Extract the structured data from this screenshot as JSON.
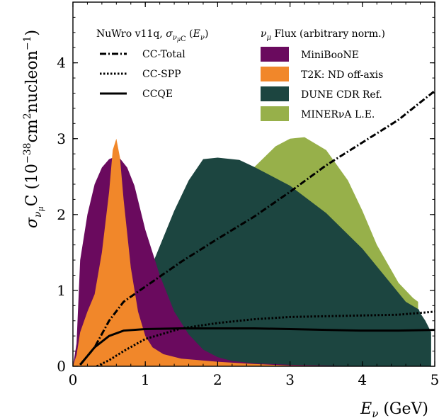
{
  "chart_data": {
    "type": "area",
    "xlabel": "E_ν (GeV)",
    "ylabel": "σ_νμC (10⁻³⁸cm²nucleon⁻¹)",
    "xlim": [
      0,
      5
    ],
    "ylim": [
      0,
      4.8
    ],
    "x_ticks": [
      "0",
      "1",
      "2",
      "3",
      "4",
      "5"
    ],
    "y_ticks": [
      "0",
      "1",
      "2",
      "3",
      "4"
    ],
    "grid": false,
    "legend_position": "top",
    "legend_cross_section_title": "NuWro v11q, σ_νμC (E_ν)",
    "legend_flux_title": "ν_μ Flux (arbitrary norm.)",
    "cross_sections": [
      {
        "name": "CC-Total",
        "style": "dash-dot",
        "x": [
          0.1,
          0.3,
          0.5,
          0.7,
          1.0,
          1.5,
          2.0,
          2.5,
          3.0,
          3.5,
          4.0,
          4.5,
          5.0
        ],
        "y": [
          0.02,
          0.25,
          0.6,
          0.85,
          1.05,
          1.38,
          1.68,
          1.97,
          2.3,
          2.65,
          2.95,
          3.25,
          3.63
        ]
      },
      {
        "name": "CC-SPP",
        "style": "dotted",
        "x": [
          0.33,
          0.5,
          0.7,
          1.0,
          1.5,
          2.0,
          2.5,
          3.0,
          3.5,
          4.0,
          4.5,
          5.0
        ],
        "y": [
          0.0,
          0.08,
          0.2,
          0.36,
          0.5,
          0.57,
          0.62,
          0.65,
          0.66,
          0.67,
          0.68,
          0.72
        ]
      },
      {
        "name": "CCQE",
        "style": "solid",
        "x": [
          0.1,
          0.3,
          0.5,
          0.7,
          1.0,
          1.5,
          2.0,
          2.5,
          3.0,
          3.5,
          4.0,
          4.5,
          5.0
        ],
        "y": [
          0.02,
          0.25,
          0.4,
          0.47,
          0.49,
          0.5,
          0.5,
          0.5,
          0.49,
          0.48,
          0.47,
          0.47,
          0.48
        ]
      }
    ],
    "fluxes": [
      {
        "name": "MINERνA L.E.",
        "color": "#97b04a",
        "x": [
          0.18,
          0.4,
          0.7,
          1.0,
          1.3,
          1.6,
          2.0,
          2.5,
          2.8,
          3.0,
          3.2,
          3.5,
          3.8,
          4.0,
          4.2,
          4.5,
          4.7,
          4.77
        ],
        "y": [
          0.0,
          0.12,
          0.5,
          1.0,
          1.45,
          1.9,
          2.3,
          2.62,
          2.9,
          3.0,
          3.02,
          2.85,
          2.45,
          2.05,
          1.6,
          1.1,
          0.9,
          0.85
        ]
      },
      {
        "name": "DUNE CDR Ref.",
        "color": "#1c4540",
        "x": [
          0.0,
          0.3,
          0.6,
          0.9,
          1.1,
          1.4,
          1.6,
          1.8,
          2.0,
          2.3,
          2.5,
          2.8,
          3.0,
          3.5,
          4.0,
          4.3,
          4.6,
          4.78,
          4.8,
          4.87,
          4.95
        ],
        "y": [
          0.0,
          0.3,
          0.45,
          0.85,
          1.35,
          2.05,
          2.45,
          2.73,
          2.75,
          2.72,
          2.63,
          2.48,
          2.38,
          2.02,
          1.55,
          1.2,
          0.85,
          0.75,
          0.7,
          0.6,
          0.45
        ]
      },
      {
        "name": "MiniBooNE",
        "color": "#6a0a5e",
        "x": [
          0.0,
          0.05,
          0.1,
          0.2,
          0.3,
          0.4,
          0.5,
          0.58,
          0.65,
          0.75,
          0.85,
          1.0,
          1.2,
          1.4,
          1.6,
          1.8,
          2.0,
          2.2,
          2.5,
          3.0,
          3.5,
          4.0
        ],
        "y": [
          0.0,
          0.3,
          1.4,
          2.0,
          2.4,
          2.62,
          2.73,
          2.76,
          2.74,
          2.62,
          2.38,
          1.8,
          1.2,
          0.72,
          0.42,
          0.22,
          0.12,
          0.07,
          0.04,
          0.02,
          0.01,
          0.0
        ]
      },
      {
        "name": "T2K: ND off-axis",
        "color": "#f1872a",
        "x": [
          0.0,
          0.05,
          0.1,
          0.2,
          0.3,
          0.4,
          0.5,
          0.55,
          0.6,
          0.65,
          0.7,
          0.8,
          0.9,
          1.0,
          1.1,
          1.25,
          1.5,
          2.0,
          2.5,
          3.0,
          4.0
        ],
        "y": [
          0.0,
          0.15,
          0.45,
          0.72,
          0.95,
          1.5,
          2.3,
          2.85,
          3.0,
          2.75,
          2.2,
          1.3,
          0.72,
          0.4,
          0.25,
          0.16,
          0.1,
          0.06,
          0.03,
          0.01,
          0.0
        ]
      }
    ],
    "flux_legend_order": [
      "MiniBooNE",
      "T2K: ND off-axis",
      "DUNE CDR Ref.",
      "MINERνA L.E."
    ]
  }
}
